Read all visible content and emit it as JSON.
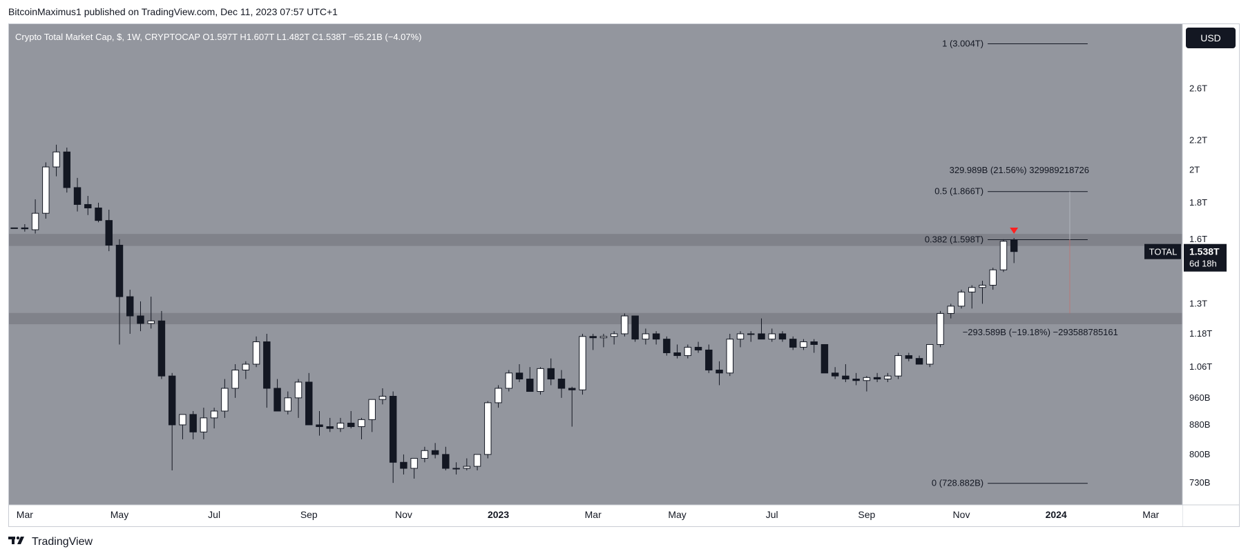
{
  "header": {
    "attribution": "BitcoinMaximus1 published on TradingView.com, Dec 11, 2023 07:57 UTC+1"
  },
  "footer": {
    "brand": "TradingView"
  },
  "colors": {
    "plot_bg": "#93969e",
    "axis_bg": "#ffffff",
    "zone": "#7c7f86",
    "bull": "#ffffff",
    "bear": "#131722",
    "marker": "#ff2020",
    "last_price_bg": "#131722"
  },
  "chart_data": {
    "type": "candlestick",
    "legend": {
      "symbol": "Crypto Total Market Cap, $, 1W, CRYPTOCAP",
      "open": "O1.597T",
      "high": "H1.607T",
      "low": "L1.482T",
      "close": "C1.538T",
      "change": "−65.21B (−4.07%)"
    },
    "currency_button": "USD",
    "scale": "log",
    "ylim": [
      0.68,
      3.2
    ],
    "y_unit": "T",
    "y_ticks": [
      {
        "value": 2.6,
        "label": "2.6T"
      },
      {
        "value": 2.2,
        "label": "2.2T"
      },
      {
        "value": 2.0,
        "label": "2T"
      },
      {
        "value": 1.8,
        "label": "1.8T"
      },
      {
        "value": 1.6,
        "label": "1.6T"
      },
      {
        "value": 1.3,
        "label": "1.3T"
      },
      {
        "value": 1.18,
        "label": "1.18T"
      },
      {
        "value": 1.06,
        "label": "1.06T"
      },
      {
        "value": 0.96,
        "label": "960B"
      },
      {
        "value": 0.88,
        "label": "880B"
      },
      {
        "value": 0.8,
        "label": "800B"
      },
      {
        "value": 0.73,
        "label": "730B"
      }
    ],
    "x_ticks": [
      {
        "index": 1,
        "label": "Mar",
        "bold": false
      },
      {
        "index": 10,
        "label": "May",
        "bold": false
      },
      {
        "index": 19,
        "label": "Jul",
        "bold": false
      },
      {
        "index": 28,
        "label": "Sep",
        "bold": false
      },
      {
        "index": 37,
        "label": "Nov",
        "bold": false
      },
      {
        "index": 46,
        "label": "2023",
        "bold": true
      },
      {
        "index": 55,
        "label": "Mar",
        "bold": false
      },
      {
        "index": 63,
        "label": "May",
        "bold": false
      },
      {
        "index": 72,
        "label": "Jul",
        "bold": false
      },
      {
        "index": 81,
        "label": "Sep",
        "bold": false
      },
      {
        "index": 90,
        "label": "Nov",
        "bold": false
      },
      {
        "index": 99,
        "label": "2024",
        "bold": true
      },
      {
        "index": 108,
        "label": "Mar",
        "bold": false
      }
    ],
    "x_domain": [
      -0.5,
      111
    ],
    "candles": [
      [
        1.66,
        1.66,
        1.66,
        1.66
      ],
      [
        1.66,
        1.68,
        1.64,
        1.655
      ],
      [
        1.65,
        1.82,
        1.63,
        1.74
      ],
      [
        1.74,
        2.05,
        1.71,
        2.02
      ],
      [
        2.02,
        2.17,
        1.96,
        2.12
      ],
      [
        2.12,
        2.15,
        1.86,
        1.89
      ],
      [
        1.89,
        1.95,
        1.75,
        1.79
      ],
      [
        1.79,
        1.84,
        1.73,
        1.77
      ],
      [
        1.77,
        1.8,
        1.69,
        1.7
      ],
      [
        1.7,
        1.76,
        1.54,
        1.57
      ],
      [
        1.57,
        1.6,
        1.14,
        1.33
      ],
      [
        1.33,
        1.36,
        1.18,
        1.25
      ],
      [
        1.25,
        1.31,
        1.19,
        1.22
      ],
      [
        1.22,
        1.33,
        1.2,
        1.23
      ],
      [
        1.23,
        1.27,
        1.02,
        1.03
      ],
      [
        1.03,
        1.04,
        0.76,
        0.88
      ],
      [
        0.88,
        0.91,
        0.84,
        0.91
      ],
      [
        0.91,
        0.92,
        0.84,
        0.86
      ],
      [
        0.86,
        0.93,
        0.84,
        0.9
      ],
      [
        0.9,
        0.93,
        0.87,
        0.92
      ],
      [
        0.92,
        1.02,
        0.9,
        0.99
      ],
      [
        0.99,
        1.07,
        0.96,
        1.05
      ],
      [
        1.05,
        1.08,
        1.02,
        1.07
      ],
      [
        1.07,
        1.17,
        1.06,
        1.15
      ],
      [
        1.15,
        1.18,
        0.93,
        0.99
      ],
      [
        0.99,
        1.02,
        0.92,
        0.92
      ],
      [
        0.92,
        0.98,
        0.91,
        0.96
      ],
      [
        0.96,
        1.02,
        0.9,
        1.01
      ],
      [
        1.01,
        1.04,
        0.89,
        0.88
      ],
      [
        0.88,
        0.92,
        0.85,
        0.875
      ],
      [
        0.875,
        0.9,
        0.86,
        0.87
      ],
      [
        0.87,
        0.9,
        0.86,
        0.885
      ],
      [
        0.885,
        0.92,
        0.87,
        0.875
      ],
      [
        0.875,
        0.9,
        0.84,
        0.895
      ],
      [
        0.895,
        0.95,
        0.86,
        0.955
      ],
      [
        0.955,
        0.99,
        0.94,
        0.965
      ],
      [
        0.965,
        0.98,
        0.73,
        0.78
      ],
      [
        0.78,
        0.8,
        0.75,
        0.765
      ],
      [
        0.765,
        0.79,
        0.74,
        0.79
      ],
      [
        0.79,
        0.82,
        0.78,
        0.81
      ],
      [
        0.81,
        0.83,
        0.79,
        0.8
      ],
      [
        0.8,
        0.82,
        0.76,
        0.765
      ],
      [
        0.765,
        0.78,
        0.75,
        0.765
      ],
      [
        0.765,
        0.79,
        0.76,
        0.77
      ],
      [
        0.77,
        0.8,
        0.76,
        0.8
      ],
      [
        0.8,
        0.95,
        0.79,
        0.945
      ],
      [
        0.945,
        1.0,
        0.93,
        0.99
      ],
      [
        0.99,
        1.05,
        0.98,
        1.04
      ],
      [
        1.04,
        1.07,
        1.01,
        1.02
      ],
      [
        1.02,
        1.06,
        0.98,
        0.98
      ],
      [
        0.98,
        1.06,
        0.97,
        1.055
      ],
      [
        1.055,
        1.09,
        1.0,
        1.02
      ],
      [
        1.02,
        1.05,
        0.96,
        0.99
      ],
      [
        0.99,
        0.995,
        0.875,
        0.985
      ],
      [
        0.985,
        1.18,
        0.97,
        1.17
      ],
      [
        1.17,
        1.18,
        1.12,
        1.165
      ],
      [
        1.165,
        1.18,
        1.13,
        1.17
      ],
      [
        1.17,
        1.19,
        1.14,
        1.18
      ],
      [
        1.18,
        1.26,
        1.17,
        1.25
      ],
      [
        1.25,
        1.25,
        1.15,
        1.16
      ],
      [
        1.16,
        1.2,
        1.14,
        1.18
      ],
      [
        1.18,
        1.19,
        1.14,
        1.16
      ],
      [
        1.16,
        1.17,
        1.1,
        1.11
      ],
      [
        1.11,
        1.14,
        1.09,
        1.1
      ],
      [
        1.1,
        1.14,
        1.09,
        1.13
      ],
      [
        1.13,
        1.15,
        1.11,
        1.12
      ],
      [
        1.12,
        1.14,
        1.04,
        1.05
      ],
      [
        1.05,
        1.08,
        1.0,
        1.04
      ],
      [
        1.04,
        1.18,
        1.03,
        1.16
      ],
      [
        1.16,
        1.19,
        1.13,
        1.18
      ],
      [
        1.18,
        1.19,
        1.15,
        1.18
      ],
      [
        1.18,
        1.24,
        1.16,
        1.16
      ],
      [
        1.16,
        1.2,
        1.15,
        1.18
      ],
      [
        1.18,
        1.19,
        1.15,
        1.16
      ],
      [
        1.16,
        1.17,
        1.12,
        1.13
      ],
      [
        1.13,
        1.16,
        1.12,
        1.15
      ],
      [
        1.15,
        1.16,
        1.11,
        1.14
      ],
      [
        1.14,
        1.14,
        1.04,
        1.04
      ],
      [
        1.04,
        1.06,
        1.02,
        1.03
      ],
      [
        1.03,
        1.07,
        1.01,
        1.02
      ],
      [
        1.02,
        1.04,
        1.0,
        1.015
      ],
      [
        1.015,
        1.03,
        0.98,
        1.025
      ],
      [
        1.025,
        1.04,
        1.01,
        1.02
      ],
      [
        1.02,
        1.04,
        1.01,
        1.03
      ],
      [
        1.03,
        1.11,
        1.02,
        1.1
      ],
      [
        1.1,
        1.11,
        1.08,
        1.09
      ],
      [
        1.09,
        1.1,
        1.07,
        1.07
      ],
      [
        1.07,
        1.14,
        1.06,
        1.14
      ],
      [
        1.14,
        1.27,
        1.13,
        1.26
      ],
      [
        1.26,
        1.3,
        1.24,
        1.29
      ],
      [
        1.29,
        1.36,
        1.28,
        1.35
      ],
      [
        1.35,
        1.38,
        1.28,
        1.37
      ],
      [
        1.37,
        1.4,
        1.3,
        1.38
      ],
      [
        1.38,
        1.46,
        1.36,
        1.45
      ],
      [
        1.45,
        1.6,
        1.44,
        1.59
      ],
      [
        1.597,
        1.607,
        1.482,
        1.538
      ]
    ],
    "zones": [
      {
        "from": 1.566,
        "to": 1.628
      },
      {
        "from": 1.217,
        "to": 1.262
      }
    ],
    "fib_levels": [
      {
        "value": 3.004,
        "label": "1 (3.004T)"
      },
      {
        "value": 1.866,
        "label": "0.5 (1.866T)"
      },
      {
        "value": 1.598,
        "label": "0.382 (1.598T)"
      },
      {
        "value": 0.7289,
        "label": "0 (728.882B)"
      }
    ],
    "measure_up": "329.989B (21.56%) 329989218726",
    "measure_down": "−293.589B (−19.18%) −293588785161",
    "last_price": {
      "value": 1.538,
      "symbol": "TOTAL",
      "label": "1.538T",
      "countdown": "6d 18h"
    }
  }
}
